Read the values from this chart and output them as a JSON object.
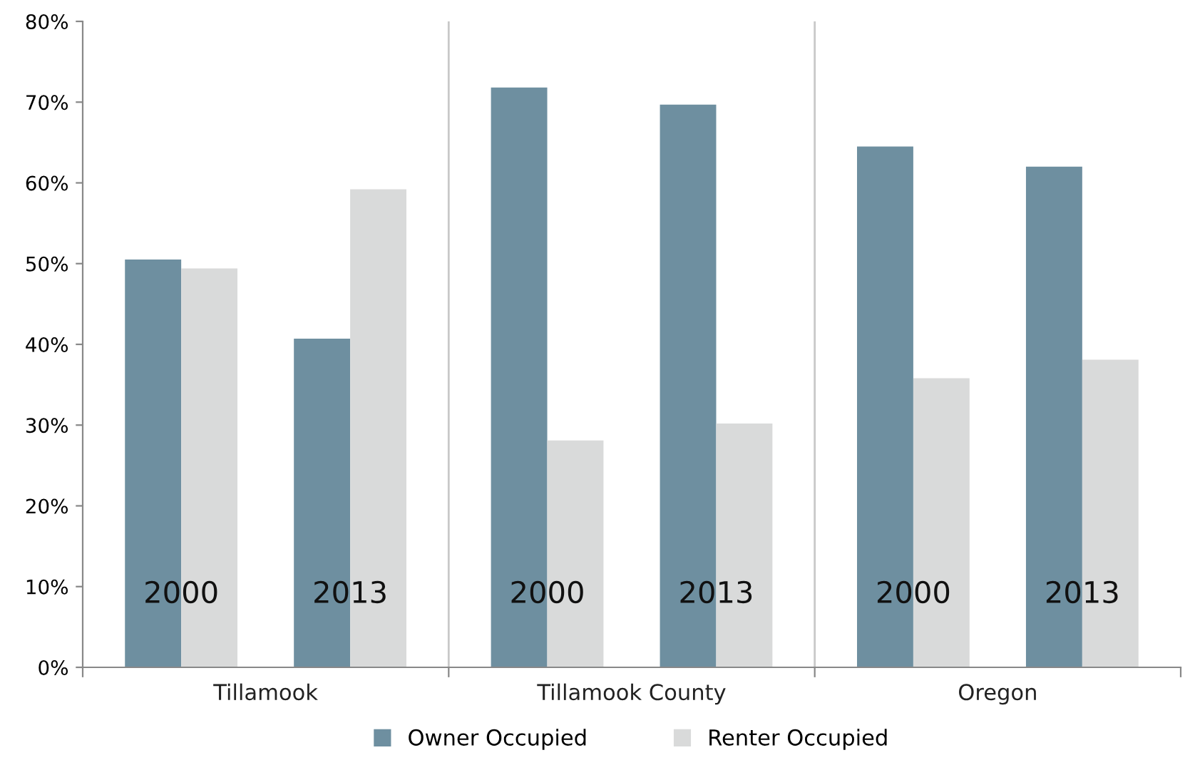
{
  "chart_data": {
    "type": "bar",
    "categories": [
      "2000",
      "2013",
      "2000",
      "2013",
      "2000",
      "2013"
    ],
    "series": [
      {
        "name": "Owner Occupied",
        "color": "#6e8fa0",
        "values": [
          50.5,
          40.7,
          71.8,
          69.7,
          64.5,
          62.0
        ]
      },
      {
        "name": "Renter Occupied",
        "color": "#d9dada",
        "values": [
          49.4,
          59.2,
          28.1,
          30.2,
          35.8,
          38.1
        ]
      }
    ],
    "annotations": [
      "Tillamook",
      "Tillamook County",
      "Oregon"
    ],
    "ylim": [
      0,
      80
    ],
    "yticks": [
      {
        "value": 0,
        "label": "0%"
      },
      {
        "value": 10,
        "label": "10%"
      },
      {
        "value": 20,
        "label": "20%"
      },
      {
        "value": 30,
        "label": "30%"
      },
      {
        "value": 40,
        "label": "40%"
      },
      {
        "value": 50,
        "label": "50%"
      },
      {
        "value": 60,
        "label": "60%"
      },
      {
        "value": 70,
        "label": "70%"
      },
      {
        "value": 80,
        "label": "80%"
      }
    ],
    "grid": false,
    "legend": "bottom"
  }
}
